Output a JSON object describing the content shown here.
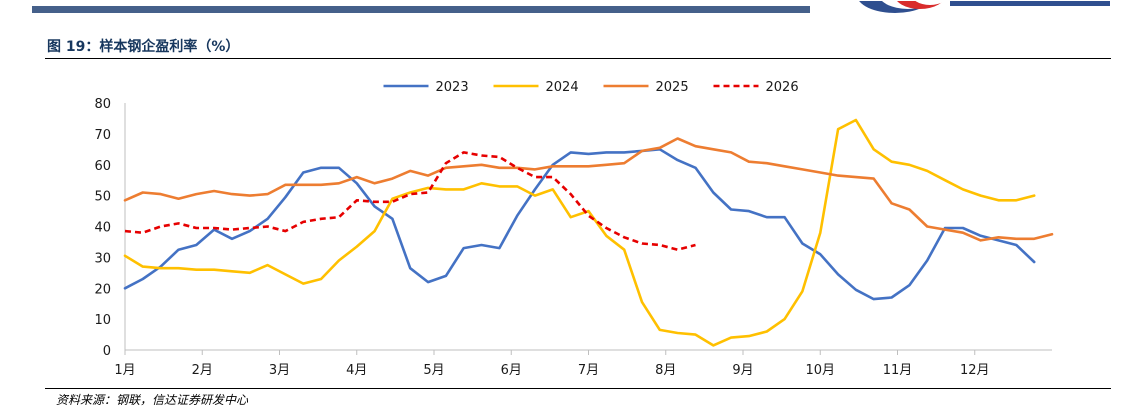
{
  "figure": {
    "title": "图 19：样本钢企盈利率（%）",
    "source": "资料来源：钢联，信达证券研发中心"
  },
  "chart_data": {
    "type": "line",
    "title": "",
    "xlabel": "",
    "ylabel": "",
    "ylim": [
      0,
      80
    ],
    "yticks": [
      0,
      10,
      20,
      30,
      40,
      50,
      60,
      70,
      80
    ],
    "x_tick_labels": [
      "1月",
      "2月",
      "3月",
      "4月",
      "5月",
      "6月",
      "7月",
      "8月",
      "9月",
      "10月",
      "11月",
      "12月"
    ],
    "x_unit": "week",
    "x_range": [
      1,
      53
    ],
    "grid": false,
    "legend": "top",
    "series": [
      {
        "name": "2023",
        "color": "#4472c4",
        "dash": "solid",
        "x": [
          1,
          2,
          3,
          4,
          5,
          6,
          7,
          8,
          9,
          10,
          11,
          12,
          13,
          14,
          15,
          16,
          17,
          18,
          19,
          20,
          21,
          22,
          23,
          24,
          25,
          26,
          27,
          28,
          29,
          30,
          31,
          32,
          33,
          34,
          35,
          36,
          37,
          38,
          39,
          40,
          41,
          42,
          43,
          44,
          45,
          46,
          47,
          48,
          49,
          50,
          51,
          52,
          53
        ],
        "values": [
          20,
          23,
          27,
          32.5,
          34,
          39,
          36,
          38.5,
          42.5,
          49.5,
          57.5,
          59,
          59,
          54,
          46.5,
          42.5,
          26.5,
          22,
          24,
          33,
          34,
          33,
          43.5,
          52,
          60,
          64,
          63.5,
          64,
          64,
          64.5,
          65,
          61.5,
          59,
          51,
          45.5,
          45,
          43,
          43,
          34.5,
          31,
          24.5,
          19.5,
          16.5,
          17,
          21,
          29,
          39.5,
          39.5,
          37,
          35.5,
          34,
          28.5,
          null
        ]
      },
      {
        "name": "2024",
        "color": "#ffc000",
        "dash": "solid",
        "x": [
          1,
          2,
          3,
          4,
          5,
          6,
          7,
          8,
          9,
          10,
          11,
          12,
          13,
          14,
          15,
          16,
          17,
          18,
          19,
          20,
          21,
          22,
          23,
          24,
          25,
          26,
          27,
          28,
          29,
          30,
          31,
          32,
          33,
          34,
          35,
          36,
          37,
          38,
          39,
          40,
          41,
          42,
          43,
          44,
          45,
          46,
          47,
          48,
          49,
          50,
          51,
          52,
          53
        ],
        "values": [
          30.5,
          27,
          26.5,
          26.5,
          26,
          26,
          25.5,
          25,
          27.5,
          24.5,
          21.5,
          23,
          29,
          33.5,
          38.5,
          49,
          51,
          52.5,
          52,
          52,
          54,
          53,
          53,
          50,
          52,
          43,
          45,
          37,
          32.5,
          15.5,
          6.5,
          5.5,
          5,
          1.5,
          4,
          4.5,
          6,
          10,
          19,
          38,
          71.5,
          74.5,
          65,
          61,
          60,
          58,
          55,
          52,
          50,
          48.5,
          48.5,
          50,
          null
        ]
      },
      {
        "name": "2025",
        "color": "#ed7d31",
        "dash": "solid",
        "x": [
          1,
          2,
          3,
          4,
          5,
          6,
          7,
          8,
          9,
          10,
          11,
          12,
          13,
          14,
          15,
          16,
          17,
          18,
          19,
          20,
          21,
          22,
          23,
          24,
          25,
          26,
          27,
          28,
          29,
          30,
          31,
          32,
          33,
          34,
          35,
          36,
          37,
          38,
          39,
          40,
          41,
          42,
          43,
          44,
          45,
          46,
          47,
          48,
          49,
          50,
          51,
          52,
          53
        ],
        "values": [
          48.5,
          51,
          50.5,
          49,
          50.5,
          51.5,
          50.5,
          50,
          50.5,
          53.5,
          53.5,
          53.5,
          54,
          56,
          54,
          55.5,
          58,
          56.5,
          59,
          59.5,
          60,
          59,
          59,
          58.5,
          59.5,
          59.5,
          59.5,
          60,
          60.5,
          64.5,
          65.5,
          68.5,
          66,
          65,
          64,
          61,
          60.5,
          59.5,
          58.5,
          57.5,
          56.5,
          56,
          55.5,
          47.5,
          45.5,
          40,
          39,
          38,
          35.5,
          36.5,
          36,
          36,
          37.5
        ]
      },
      {
        "name": "2026",
        "color": "#e60000",
        "dash": "dashed",
        "x": [
          1,
          2,
          3,
          4,
          5,
          6,
          7,
          8,
          9,
          10,
          11,
          12,
          13,
          14,
          15,
          16,
          17,
          18,
          19,
          20,
          21,
          22,
          23,
          24,
          25,
          26,
          27,
          28,
          29,
          30,
          31,
          32,
          33,
          34
        ],
        "values": [
          38.5,
          38,
          40,
          41,
          39.5,
          39.5,
          39,
          39.5,
          40,
          38.5,
          41.5,
          42.5,
          43,
          48.5,
          48,
          48,
          50.5,
          51,
          60.5,
          64,
          63,
          62.5,
          59,
          56,
          56,
          50.5,
          43.5,
          39.5,
          36.5,
          34.5,
          34,
          32.5,
          34,
          null
        ]
      }
    ]
  }
}
